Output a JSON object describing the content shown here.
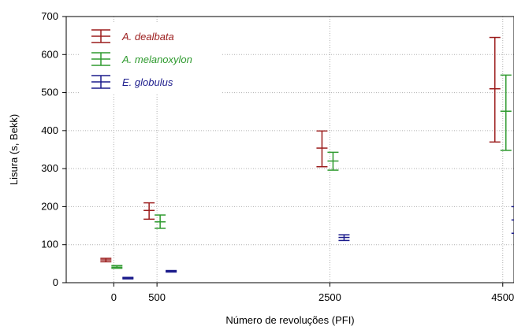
{
  "chart_data": {
    "type": "errorbar",
    "xlabel": "Número de revoluções (PFI)",
    "ylabel": "Lisura (s, Bekk)",
    "ylim": [
      0,
      700
    ],
    "yticks": [
      0,
      100,
      200,
      300,
      400,
      500,
      600,
      700
    ],
    "xlim": [
      -550,
      4630
    ],
    "xticks": [
      0,
      500,
      2500,
      4500
    ],
    "grid": true,
    "legend_position": "top-left",
    "series": [
      {
        "name": "A. dealbata",
        "color": "#9b1c1c",
        "points": [
          {
            "x": 0,
            "mean": 60,
            "low": 55,
            "high": 64
          },
          {
            "x": 500,
            "mean": 190,
            "low": 167,
            "high": 210
          },
          {
            "x": 2500,
            "mean": 354,
            "low": 305,
            "high": 399
          },
          {
            "x": 4500,
            "mean": 510,
            "low": 370,
            "high": 645
          }
        ]
      },
      {
        "name": "A. melanoxylon",
        "color": "#2e9a2e",
        "points": [
          {
            "x": 0,
            "mean": 41,
            "low": 38,
            "high": 45
          },
          {
            "x": 500,
            "mean": 160,
            "low": 143,
            "high": 178
          },
          {
            "x": 2500,
            "mean": 320,
            "low": 296,
            "high": 343
          },
          {
            "x": 4500,
            "mean": 451,
            "low": 348,
            "high": 546
          }
        ]
      },
      {
        "name": "E. globulus",
        "color": "#1c1c8c",
        "points": [
          {
            "x": 0,
            "mean": 12,
            "low": 10,
            "high": 14
          },
          {
            "x": 500,
            "mean": 30,
            "low": 28,
            "high": 32
          },
          {
            "x": 2500,
            "mean": 119,
            "low": 111,
            "high": 126
          },
          {
            "x": 4500,
            "mean": 165,
            "low": 130,
            "high": 200
          }
        ]
      }
    ]
  }
}
